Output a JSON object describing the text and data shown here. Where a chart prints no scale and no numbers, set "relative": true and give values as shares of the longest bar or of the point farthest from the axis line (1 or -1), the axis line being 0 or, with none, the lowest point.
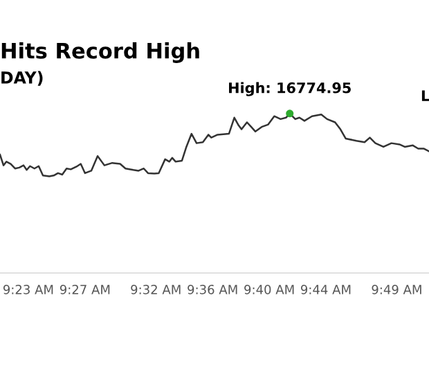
{
  "chart_data": {
    "type": "line",
    "title": "Hits Record High",
    "subtitle": "DAY)",
    "relative": true,
    "grid": false,
    "x": [
      9.35,
      9.3541,
      9.3576,
      9.3626,
      9.3677,
      9.3727,
      9.3777,
      9.3814,
      9.3853,
      9.3905,
      9.3955,
      9.4005,
      9.408,
      9.4132,
      9.4182,
      9.4232,
      9.4283,
      9.4333,
      9.4409,
      9.445,
      9.45,
      9.4574,
      9.4648,
      9.4728,
      9.482,
      9.4913,
      9.4976,
      9.5069,
      9.513,
      9.5191,
      9.5241,
      9.5315,
      9.5367,
      9.5442,
      9.5492,
      9.5526,
      9.5566,
      9.564,
      9.5689,
      9.5753,
      9.5812,
      9.5886,
      9.5951,
      9.5985,
      9.6059,
      9.6193,
      9.6256,
      9.6307,
      9.6341,
      9.6405,
      9.6455,
      9.6504,
      9.6578,
      9.6652,
      9.6726,
      9.68,
      9.6864,
      9.6908,
      9.6973,
      9.7022,
      9.7081,
      9.717,
      9.7279,
      9.7347,
      9.7441,
      9.7504,
      9.7566,
      9.7693,
      9.7788,
      9.785,
      9.7915,
      9.801,
      9.8104,
      9.8199,
      9.8261,
      9.8356,
      9.8419,
      9.8483,
      9.8546
    ],
    "series": [
      {
        "color": "#333333",
        "values": [
          0.742,
          0.675,
          0.698,
          0.684,
          0.655,
          0.661,
          0.675,
          0.646,
          0.67,
          0.655,
          0.67,
          0.611,
          0.606,
          0.611,
          0.626,
          0.617,
          0.655,
          0.65,
          0.67,
          0.684,
          0.626,
          0.641,
          0.733,
          0.675,
          0.69,
          0.684,
          0.655,
          0.646,
          0.641,
          0.655,
          0.626,
          0.623,
          0.626,
          0.713,
          0.698,
          0.722,
          0.698,
          0.704,
          0.786,
          0.873,
          0.814,
          0.82,
          0.867,
          0.849,
          0.867,
          0.873,
          0.974,
          0.925,
          0.901,
          0.945,
          0.916,
          0.887,
          0.916,
          0.93,
          0.983,
          0.965,
          0.974,
          1,
          0.965,
          0.974,
          0.954,
          0.983,
          0.994,
          0.965,
          0.945,
          0.901,
          0.843,
          0.829,
          0.82,
          0.849,
          0.814,
          0.791,
          0.814,
          0.806,
          0.791,
          0.8,
          0.78,
          0.78,
          0.763
        ]
      }
    ],
    "xlim": [
      9.35,
      9.8546
    ],
    "xticks": [
      {
        "value": 9.3833,
        "label": "9:23 AM"
      },
      {
        "value": 9.45,
        "label": "9:27 AM"
      },
      {
        "value": 9.5333,
        "label": "9:32 AM"
      },
      {
        "value": 9.6,
        "label": "9:36 AM"
      },
      {
        "value": 9.6667,
        "label": "9:40 AM"
      },
      {
        "value": 9.7333,
        "label": "9:44 AM"
      },
      {
        "value": 9.8167,
        "label": "9:49 AM"
      }
    ],
    "annotations": [
      {
        "text": "High: 16774.95",
        "x": 9.6908,
        "y": 1
      },
      "L"
    ]
  }
}
